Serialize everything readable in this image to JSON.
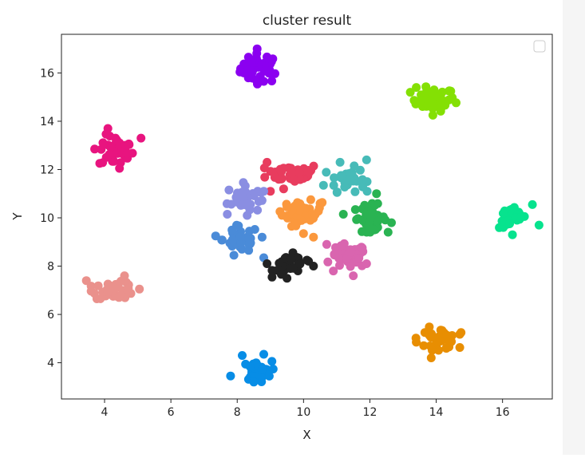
{
  "chart_data": {
    "type": "scatter",
    "title": "cluster result",
    "xlabel": "X",
    "ylabel": "Y",
    "xlim": [
      2.7,
      17.5
    ],
    "ylim": [
      2.5,
      17.6
    ],
    "xticks": [
      4,
      6,
      8,
      10,
      12,
      14,
      16
    ],
    "yticks": [
      4,
      6,
      8,
      10,
      12,
      14,
      16
    ],
    "grid": false,
    "legend": {
      "placement": "top-right",
      "entries": []
    },
    "clusters": [
      {
        "color": "#8b00f0",
        "center": [
          8.7,
          16.2
        ],
        "spread": [
          0.3,
          0.3
        ],
        "count": 40,
        "outliers": [
          [
            8.6,
            17.0
          ],
          [
            8.8,
            15.65
          ],
          [
            8.2,
            16.0
          ]
        ]
      },
      {
        "color": "#84e004",
        "center": [
          13.9,
          14.9
        ],
        "spread": [
          0.33,
          0.24
        ],
        "count": 40,
        "outliers": [
          [
            13.4,
            15.4
          ],
          [
            13.9,
            14.25
          ]
        ]
      },
      {
        "color": "#e8147f",
        "center": [
          4.35,
          12.75
        ],
        "spread": [
          0.26,
          0.33
        ],
        "count": 40,
        "outliers": [
          [
            5.1,
            13.3
          ],
          [
            3.7,
            12.85
          ],
          [
            4.1,
            13.7
          ],
          [
            4.45,
            12.05
          ]
        ]
      },
      {
        "color": "#e83c5e",
        "center": [
          9.7,
          11.85
        ],
        "spread": [
          0.4,
          0.2
        ],
        "count": 45,
        "outliers": [
          [
            9.0,
            11.1
          ],
          [
            9.4,
            11.2
          ],
          [
            8.9,
            12.3
          ]
        ]
      },
      {
        "color": "#47bbb8",
        "center": [
          11.3,
          11.6
        ],
        "spread": [
          0.28,
          0.25
        ],
        "count": 35,
        "outliers": [
          [
            10.6,
            11.35
          ],
          [
            11.9,
            12.4
          ],
          [
            11.1,
            12.3
          ]
        ]
      },
      {
        "color": "#8a8ee2",
        "center": [
          8.2,
          10.8
        ],
        "spread": [
          0.25,
          0.3
        ],
        "count": 35,
        "outliers": [
          [
            7.7,
            10.15
          ],
          [
            8.3,
            10.1
          ],
          [
            8.8,
            11.1
          ]
        ]
      },
      {
        "color": "#fb983d",
        "center": [
          9.95,
          10.2
        ],
        "spread": [
          0.3,
          0.25
        ],
        "count": 40,
        "outliers": [
          [
            10.3,
            9.2
          ],
          [
            10.0,
            9.35
          ],
          [
            10.5,
            10.6
          ],
          [
            9.5,
            10.45
          ]
        ]
      },
      {
        "color": "#2ab352",
        "center": [
          12.0,
          10.0
        ],
        "spread": [
          0.25,
          0.27
        ],
        "count": 40,
        "outliers": [
          [
            12.2,
            11.0
          ],
          [
            11.2,
            10.15
          ],
          [
            12.65,
            9.8
          ]
        ]
      },
      {
        "color": "#07e38e",
        "center": [
          16.3,
          10.0
        ],
        "spread": [
          0.2,
          0.22
        ],
        "count": 35,
        "outliers": [
          [
            17.1,
            9.7
          ],
          [
            16.9,
            10.55
          ],
          [
            16.3,
            9.3
          ]
        ]
      },
      {
        "color": "#4a8bd8",
        "center": [
          8.1,
          9.1
        ],
        "spread": [
          0.27,
          0.27
        ],
        "count": 40,
        "outliers": [
          [
            7.35,
            9.25
          ],
          [
            8.75,
            9.2
          ],
          [
            8.8,
            8.35
          ],
          [
            7.9,
            8.45
          ]
        ]
      },
      {
        "color": "#d965af",
        "center": [
          11.35,
          8.4
        ],
        "spread": [
          0.28,
          0.25
        ],
        "count": 40,
        "outliers": [
          [
            10.7,
            8.9
          ],
          [
            11.9,
            8.1
          ],
          [
            11.5,
            7.6
          ],
          [
            10.9,
            7.8
          ]
        ]
      },
      {
        "color": "#222222",
        "center": [
          9.6,
          8.05
        ],
        "spread": [
          0.25,
          0.23
        ],
        "count": 35,
        "outliers": [
          [
            8.9,
            8.1
          ],
          [
            10.3,
            8.0
          ],
          [
            10.1,
            8.25
          ],
          [
            9.5,
            7.5
          ]
        ]
      },
      {
        "color": "#ea918c",
        "center": [
          4.3,
          7.0
        ],
        "spread": [
          0.32,
          0.17
        ],
        "count": 40,
        "outliers": [
          [
            3.45,
            7.4
          ],
          [
            5.05,
            7.05
          ],
          [
            4.6,
            7.6
          ]
        ]
      },
      {
        "color": "#e88e02",
        "center": [
          14.05,
          5.0
        ],
        "spread": [
          0.3,
          0.22
        ],
        "count": 40,
        "outliers": [
          [
            13.4,
            4.85
          ],
          [
            14.75,
            5.25
          ],
          [
            13.85,
            4.2
          ],
          [
            14.3,
            4.6
          ]
        ]
      },
      {
        "color": "#078de6",
        "center": [
          8.6,
          3.65
        ],
        "spread": [
          0.22,
          0.2
        ],
        "count": 35,
        "outliers": [
          [
            7.8,
            3.45
          ],
          [
            8.15,
            4.3
          ],
          [
            8.8,
            4.35
          ],
          [
            8.5,
            3.2
          ]
        ]
      }
    ]
  }
}
